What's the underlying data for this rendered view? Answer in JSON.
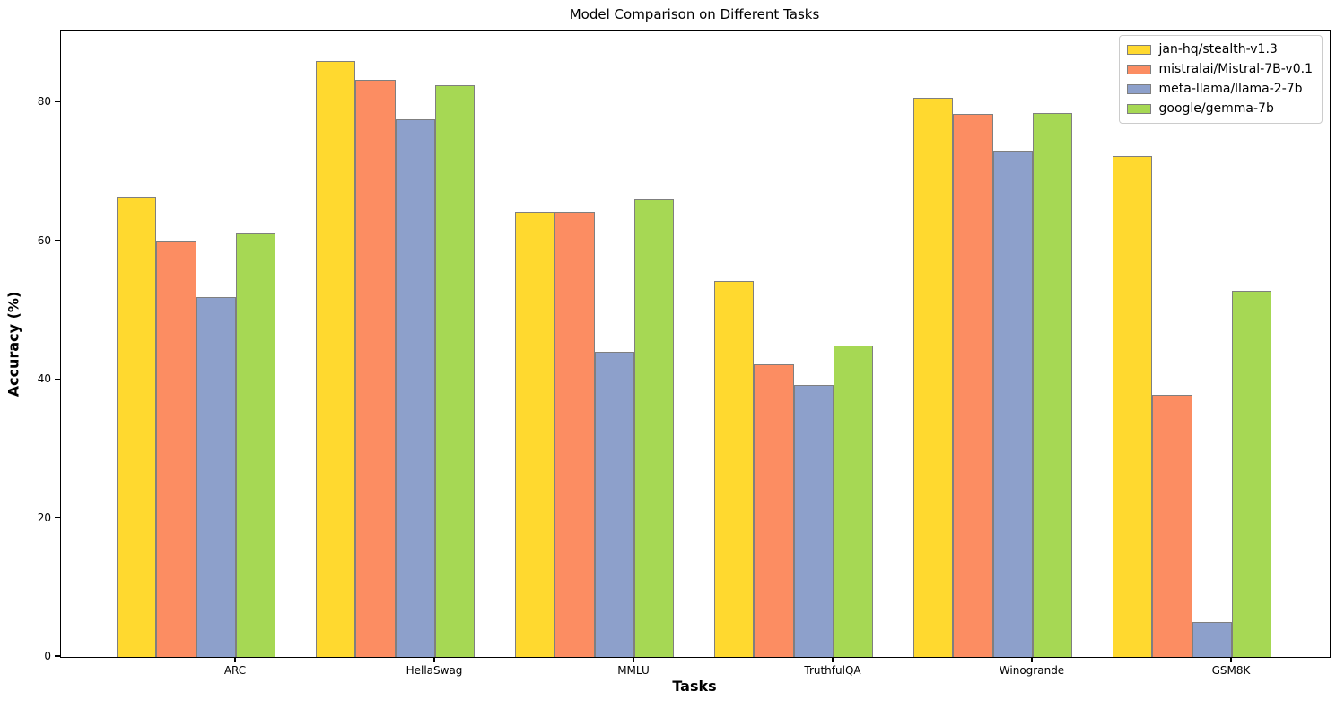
{
  "figure": {
    "background": "#ffffff",
    "text_color": "#000000"
  },
  "chart_data": {
    "type": "bar",
    "title": "Model Comparison on Different Tasks",
    "xlabel": "Tasks",
    "ylabel": "Accuracy (%)",
    "categories": [
      "ARC",
      "HellaSwag",
      "MMLU",
      "TruthfulQA",
      "Winogrande",
      "GSM8K"
    ],
    "series": [
      {
        "name": "jan-hq/stealth-v1.3",
        "color": "#FFD92F",
        "values": [
          66.3,
          86.0,
          64.3,
          54.3,
          80.7,
          72.3
        ]
      },
      {
        "name": "mistralai/Mistral-7B-v0.1",
        "color": "#FC8D62",
        "values": [
          60.0,
          83.3,
          64.2,
          42.2,
          78.4,
          37.8
        ]
      },
      {
        "name": "meta-llama/llama-2-7b",
        "color": "#8DA0CB",
        "values": [
          52.0,
          77.6,
          44.0,
          39.3,
          73.0,
          5.0
        ]
      },
      {
        "name": "google/gemma-7b",
        "color": "#A6D854",
        "values": [
          61.1,
          82.5,
          66.0,
          44.9,
          78.5,
          52.9
        ]
      }
    ],
    "ylim": [
      0,
      90.4
    ],
    "yticks": [
      0,
      20,
      40,
      60,
      80
    ],
    "grid": false,
    "legend_position": "upper right",
    "bar_edge_color": "#7f7f7f",
    "spine_color": "#000000"
  }
}
